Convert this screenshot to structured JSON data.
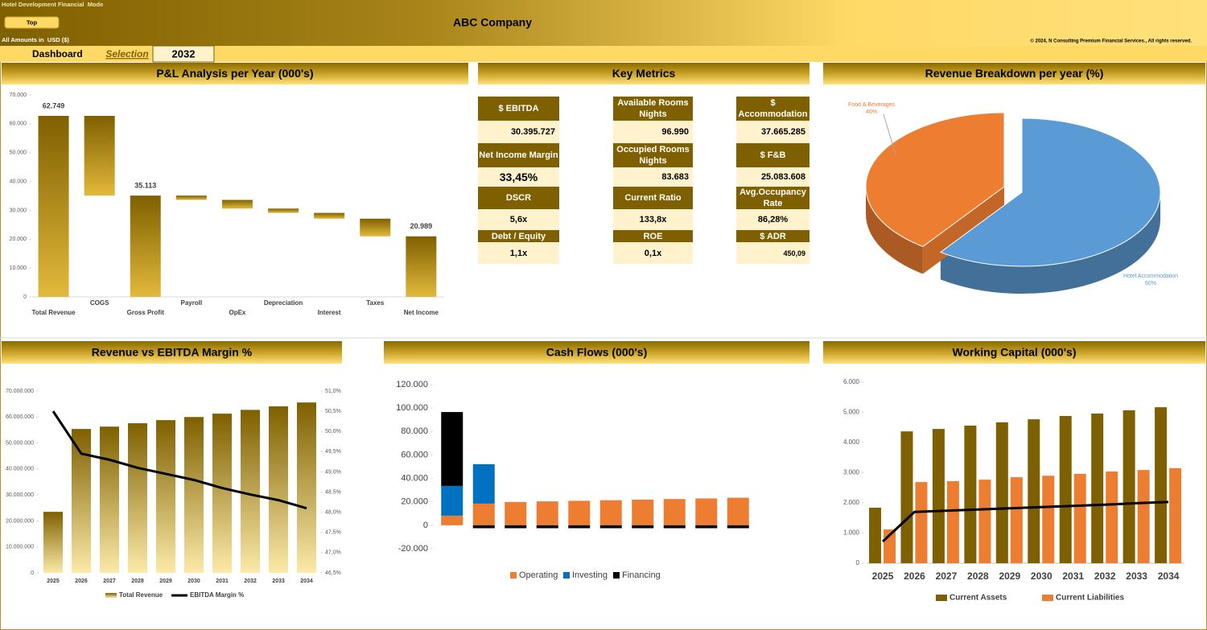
{
  "header": {
    "model_name": "Hotel Development Financial  Mode",
    "button": "Top",
    "company": "ABC Company",
    "currency_note": "All Amounts in  USD ($)",
    "copyright": "© 2024, N Consulting Premium Financial Services., All rights reserved."
  },
  "nav": {
    "dashboard": "Dashboard",
    "selection": "Selection",
    "year": "2032"
  },
  "key_metrics": {
    "title": "Key Metrics",
    "columns": [
      [
        {
          "label": "$ EBITDA",
          "value": "30.395.727"
        },
        {
          "label": "Net Income Margin",
          "value": "33,45%"
        },
        {
          "label": "DSCR",
          "value": "5,6x"
        },
        {
          "label": "Debt / Equity",
          "value": "1,1x"
        }
      ],
      [
        {
          "label": "Available Rooms Nights",
          "value": "96.990"
        },
        {
          "label": "Occupied Rooms Nights",
          "value": "83.683"
        },
        {
          "label": "Current Ratio",
          "value": "133,8x"
        },
        {
          "label": "ROE",
          "value": "0,1x"
        }
      ],
      [
        {
          "label": "$ Accommodation",
          "value": "37.665.285"
        },
        {
          "label": "$ F&B",
          "value": "25.083.608"
        },
        {
          "label": "Avg.Occupancy Rate",
          "value": "86,28%"
        },
        {
          "label": "$ ADR",
          "value": "450,09"
        }
      ]
    ]
  },
  "chart_data": [
    {
      "type": "waterfall",
      "title": "P&L Analysis per Year (000's)",
      "categories": [
        "Total Revenue",
        "COGS",
        "Gross Profit",
        "Payroll",
        "OpEx",
        "Depreciation",
        "Interest",
        "Taxes",
        "Net Income"
      ],
      "values": [
        62749,
        -27636,
        35113,
        -1500,
        -3000,
        -1500,
        -2000,
        -6124,
        20989
      ],
      "value_labels": [
        "62.749",
        null,
        "35.113",
        null,
        null,
        null,
        null,
        null,
        "20.989"
      ],
      "color": "#7f6000",
      "gradient": true,
      "ylim": [
        0,
        70000
      ],
      "yticks": [
        0,
        {
          "value": 10000,
          "label": "10.000"
        },
        {
          "value": 20000,
          "label": "20.000"
        },
        {
          "value": 30000,
          "label": "30.000"
        },
        {
          "value": 40000,
          "label": "40.000"
        },
        {
          "value": 50000,
          "label": "50.000"
        },
        {
          "value": 60000,
          "label": "60.000"
        },
        {
          "value": 70000,
          "label": "70.000"
        }
      ]
    },
    {
      "type": "pie",
      "title": "Revenue Breakdown per year (%)",
      "categories": [
        "Hotel Accommodation",
        "Food & Beverages"
      ],
      "values": [
        60,
        40
      ],
      "value_labels": [
        "60%",
        "40%"
      ],
      "colors": [
        "#5b9bd5",
        "#ed7d31"
      ]
    },
    {
      "type": "bar_line",
      "title": "Revenue vs EBITDA Margin %",
      "categories": [
        "2025",
        "2026",
        "2027",
        "2028",
        "2029",
        "2030",
        "2031",
        "2032",
        "2033",
        "2034"
      ],
      "series": [
        {
          "name": "Total Revenue",
          "type": "bar",
          "color": "#7f6000",
          "values": [
            23500000,
            55400000,
            56300000,
            57600000,
            58800000,
            60000000,
            61300000,
            62748893,
            64100000,
            65600000
          ]
        },
        {
          "name": "EBITDA Margin %",
          "type": "line",
          "axis": "y2",
          "color": "#000000",
          "values": [
            50.5,
            49.45,
            49.3,
            49.1,
            48.95,
            48.8,
            48.6,
            48.44,
            48.3,
            48.1
          ]
        }
      ],
      "gradient": true,
      "legend": "bottom",
      "ylim": [
        0,
        70000000
      ],
      "yticks": [
        0,
        {
          "value": 10000000,
          "label": "10.000.000"
        },
        {
          "value": 20000000,
          "label": "20.000.000"
        },
        {
          "value": 30000000,
          "label": "30.000.000"
        },
        {
          "value": 40000000,
          "label": "40.000.000"
        },
        {
          "value": 50000000,
          "label": "50.000.000"
        },
        {
          "value": 60000000,
          "label": "60.000.000"
        },
        {
          "value": 70000000,
          "label": "70.000.000"
        }
      ],
      "y2lim": [
        46.5,
        51
      ],
      "y2ticks": [
        {
          "value": 46.5,
          "label": "46,5%"
        },
        {
          "value": 47,
          "label": "47,0%"
        },
        {
          "value": 47.5,
          "label": "47,5%"
        },
        {
          "value": 48,
          "label": "48,0%"
        },
        {
          "value": 48.5,
          "label": "48,5%"
        },
        {
          "value": 49,
          "label": "49,0%"
        },
        {
          "value": 49.5,
          "label": "49,5%"
        },
        {
          "value": 50,
          "label": "50,0%"
        },
        {
          "value": 50.5,
          "label": "50,5%"
        },
        {
          "value": 51,
          "label": "51,0%"
        }
      ]
    },
    {
      "type": "stacked_bar",
      "title": "Cash Flows (000's)",
      "categories": [
        null,
        null,
        null,
        null,
        null,
        null,
        null,
        null,
        null,
        null
      ],
      "series": [
        {
          "name": "Operating",
          "type": "bar",
          "color": "#ed7d31",
          "values": [
            8200,
            18500,
            19900,
            20400,
            20900,
            21400,
            21900,
            22400,
            22900,
            23500
          ]
        },
        {
          "name": "Investing",
          "type": "bar",
          "color": "#0070c0",
          "values": [
            25400,
            33600,
            0,
            0,
            0,
            0,
            0,
            0,
            0,
            0
          ]
        },
        {
          "name": "Financing",
          "type": "bar",
          "color": "#000000",
          "values": [
            63000,
            -2500,
            -2500,
            -2500,
            -2500,
            -2500,
            -2500,
            -2500,
            -2500,
            -2500
          ]
        }
      ],
      "legend": "bottom",
      "ylim": [
        -20000,
        120000
      ],
      "yticks": [
        {
          "value": -20000,
          "label": "-20.000"
        },
        0,
        {
          "value": 20000,
          "label": "20.000"
        },
        {
          "value": 40000,
          "label": "40.000"
        },
        {
          "value": 60000,
          "label": "60.000"
        },
        {
          "value": 80000,
          "label": "80.000"
        },
        {
          "value": 100000,
          "label": "100.000"
        },
        {
          "value": 120000,
          "label": "120.000"
        }
      ]
    },
    {
      "type": "bar_line",
      "title": "Working Capital (000's)",
      "categories": [
        "2025",
        "2026",
        "2027",
        "2028",
        "2029",
        "2030",
        "2031",
        "2032",
        "2033",
        "2034"
      ],
      "series": [
        {
          "name": "Current Assets",
          "type": "bar",
          "color": "#7f6000",
          "values": [
            1840,
            4370,
            4450,
            4560,
            4670,
            4770,
            4880,
            4960,
            5070,
            5170
          ]
        },
        {
          "name": "Current Liabilities",
          "type": "bar",
          "color": "#ed7d31",
          "values": [
            1120,
            2690,
            2720,
            2770,
            2850,
            2900,
            2960,
            3040,
            3090,
            3150
          ]
        },
        {
          "type": "line",
          "color": "#000000",
          "values": [
            720,
            1700,
            1740,
            1780,
            1820,
            1860,
            1900,
            1940,
            1990,
            2030
          ]
        }
      ],
      "legend": "bottom",
      "ylim": [
        0,
        6000
      ],
      "yticks": [
        0,
        {
          "value": 1000,
          "label": "1.000"
        },
        {
          "value": 2000,
          "label": "2.000"
        },
        {
          "value": 3000,
          "label": "3.000"
        },
        {
          "value": 4000,
          "label": "4.000"
        },
        {
          "value": 5000,
          "label": "5.000"
        },
        {
          "value": 6000,
          "label": "6.000"
        }
      ]
    }
  ]
}
